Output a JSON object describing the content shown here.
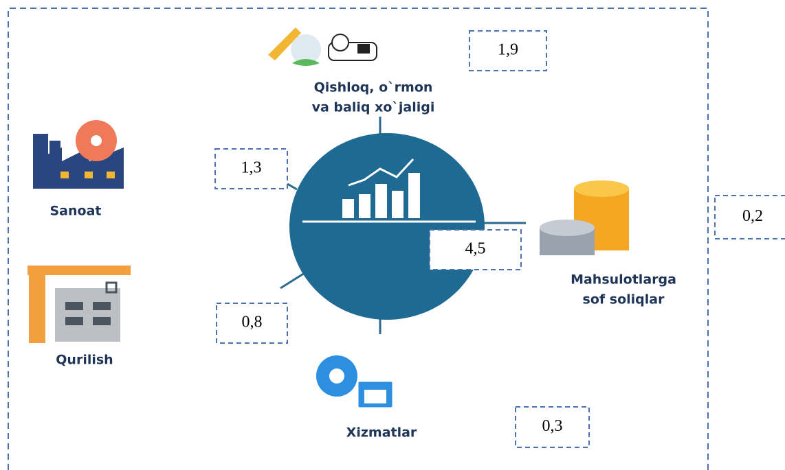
{
  "sectors": [
    {
      "label_lines": [
        "Qishloq, o`rmon",
        "va baliq xo`jaligi"
      ]
    },
    {
      "label_lines": [
        "Sanoat"
      ]
    },
    {
      "label_lines": [
        "Qurilish"
      ]
    },
    {
      "label_lines": [
        "Mahsulotlarga",
        "sof soliqlar"
      ]
    },
    {
      "label_lines": [
        "Xizmatlar"
      ]
    }
  ],
  "value_boxes": [
    "1,9",
    "1,3",
    "0,8",
    "4,5",
    "0,2",
    "0,3"
  ]
}
